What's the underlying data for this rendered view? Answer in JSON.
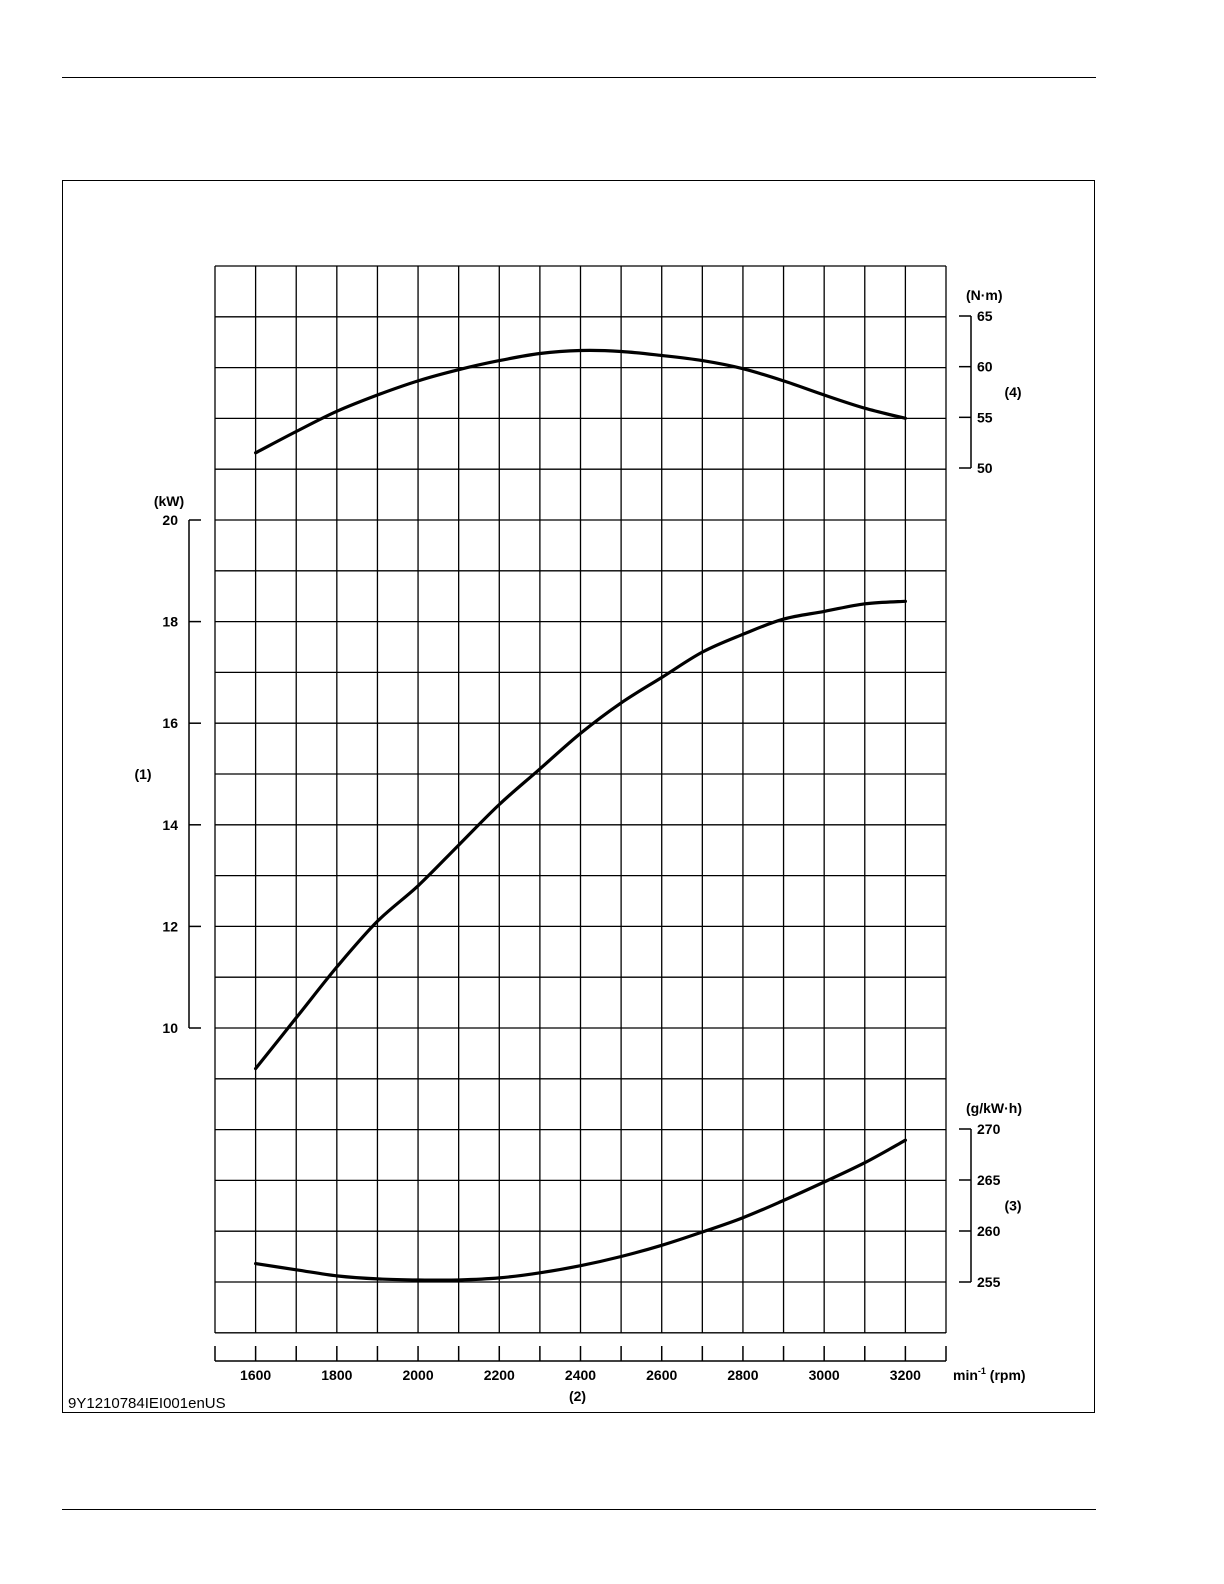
{
  "figure_id": "9Y1210784IEI001enUS",
  "chart_data": {
    "type": "line",
    "x": {
      "label_marker": "(2)",
      "unit_base": "min",
      "unit_exp": "-1",
      "unit_suffix": "(rpm)",
      "range": [
        1500,
        3300
      ],
      "ticks": [
        1600,
        1800,
        2000,
        2200,
        2400,
        2600,
        2800,
        3000,
        3200
      ],
      "minor_step": 100
    },
    "axes": [
      {
        "id": "power",
        "marker": "(1)",
        "unit": "(kW)",
        "side": "left",
        "range": [
          10,
          20
        ],
        "ticks": [
          10,
          12,
          14,
          16,
          18,
          20
        ]
      },
      {
        "id": "torque",
        "marker": "(4)",
        "unit": "(N·m)",
        "side": "right",
        "range": [
          50,
          65
        ],
        "ticks": [
          50,
          55,
          60,
          65
        ]
      },
      {
        "id": "fuel",
        "marker": "(3)",
        "unit": "(g/kW·h)",
        "side": "right",
        "range": [
          255,
          270
        ],
        "ticks": [
          255,
          260,
          265,
          270
        ]
      }
    ],
    "series": [
      {
        "axis": "torque",
        "points": [
          [
            1600,
            51.5
          ],
          [
            1700,
            53.6
          ],
          [
            1800,
            55.6
          ],
          [
            1900,
            57.2
          ],
          [
            2000,
            58.6
          ],
          [
            2100,
            59.7
          ],
          [
            2200,
            60.6
          ],
          [
            2300,
            61.3
          ],
          [
            2400,
            61.6
          ],
          [
            2500,
            61.5
          ],
          [
            2600,
            61.1
          ],
          [
            2700,
            60.6
          ],
          [
            2800,
            59.8
          ],
          [
            2900,
            58.6
          ],
          [
            3000,
            57.2
          ],
          [
            3100,
            55.9
          ],
          [
            3200,
            54.9
          ]
        ]
      },
      {
        "axis": "power",
        "points": [
          [
            1600,
            9.2
          ],
          [
            1700,
            10.2
          ],
          [
            1800,
            11.2
          ],
          [
            1900,
            12.1
          ],
          [
            2000,
            12.8
          ],
          [
            2100,
            13.6
          ],
          [
            2200,
            14.4
          ],
          [
            2300,
            15.1
          ],
          [
            2400,
            15.8
          ],
          [
            2500,
            16.4
          ],
          [
            2600,
            16.9
          ],
          [
            2700,
            17.4
          ],
          [
            2800,
            17.75
          ],
          [
            2900,
            18.05
          ],
          [
            3000,
            18.2
          ],
          [
            3100,
            18.35
          ],
          [
            3200,
            18.4
          ]
        ]
      },
      {
        "axis": "fuel",
        "points": [
          [
            1600,
            256.8
          ],
          [
            1700,
            256.2
          ],
          [
            1800,
            255.6
          ],
          [
            1900,
            255.3
          ],
          [
            2000,
            255.2
          ],
          [
            2100,
            255.2
          ],
          [
            2200,
            255.4
          ],
          [
            2300,
            255.9
          ],
          [
            2400,
            256.6
          ],
          [
            2500,
            257.5
          ],
          [
            2600,
            258.6
          ],
          [
            2700,
            259.9
          ],
          [
            2800,
            261.3
          ],
          [
            2900,
            263.0
          ],
          [
            3000,
            264.8
          ],
          [
            3100,
            266.7
          ],
          [
            3200,
            268.9
          ]
        ]
      }
    ]
  }
}
